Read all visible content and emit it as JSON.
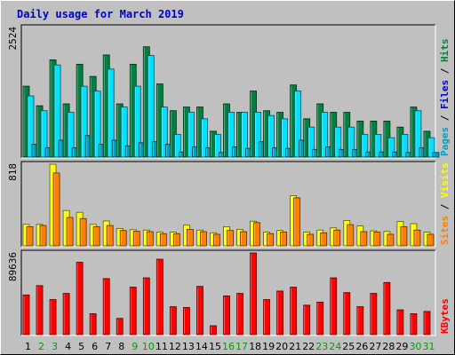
{
  "chart_data": {
    "type": "bar",
    "title": "Daily usage for March 2019",
    "colors": {
      "frame_bg": "#c0c0c0",
      "plot_bg": "#c0c0c0",
      "grid": "#a8a8a8",
      "title": "#0000cc",
      "hits": "#008040",
      "files": "#00e0ff",
      "pages": "#00a0c0",
      "visits": "#ffff00",
      "sites": "#ff8000",
      "kbytes": "#ff0000",
      "weekday": "#000000",
      "weekend": "#00a000"
    },
    "days": [
      "1",
      "2",
      "3",
      "4",
      "5",
      "6",
      "7",
      "8",
      "9",
      "10",
      "11",
      "12",
      "13",
      "14",
      "15",
      "16",
      "17",
      "18",
      "19",
      "20",
      "21",
      "22",
      "23",
      "24",
      "25",
      "26",
      "27",
      "28",
      "29",
      "30",
      "31"
    ],
    "weekend_days": [
      "2",
      "3",
      "9",
      "10",
      "16",
      "17",
      "23",
      "24",
      "30",
      "31"
    ],
    "panels": [
      {
        "id": "hits-files-pages",
        "max_label": "2524",
        "ymax": 2524,
        "labels": [
          {
            "text": "Pages",
            "color": "#00a0c0"
          },
          {
            "text": "Files",
            "color": "#0000cc"
          },
          {
            "text": "Hits",
            "color": "#008040"
          }
        ],
        "series": [
          {
            "name": "Hits",
            "color": "#008040",
            "values": [
              1381,
              1000,
              1894,
              1037,
              1809,
              1571,
              1989,
              1037,
              1809,
              2149,
              1425,
              904,
              975,
              975,
              503,
              1037,
              873,
              1287,
              904,
              873,
              1405,
              746,
              1037,
              873,
              873,
              701,
              701,
              701,
              584,
              975,
              503
            ]
          },
          {
            "name": "Files",
            "color": "#00e0ff",
            "values": [
              1193,
              904,
              1795,
              873,
              1381,
              1287,
              1714,
              975,
              1381,
              1978,
              975,
              441,
              873,
              746,
              441,
              873,
              873,
              873,
              810,
              746,
              1287,
              584,
              873,
              584,
              584,
              441,
              441,
              378,
              441,
              904,
              378
            ]
          },
          {
            "name": "Pages",
            "color": "#00a0c0",
            "values": [
              250,
              180,
              330,
              180,
              420,
              250,
              330,
              220,
              280,
              300,
              250,
              100,
              200,
              180,
              90,
              200,
              170,
              300,
              180,
              170,
              330,
              150,
              200,
              150,
              150,
              100,
              100,
              100,
              90,
              180,
              90
            ]
          }
        ]
      },
      {
        "id": "visits-sites",
        "max_label": "818",
        "ymax": 818,
        "labels": [
          {
            "text": "Sites",
            "color": "#ff8000"
          },
          {
            "text": "Visits",
            "color": "#ffff00"
          }
        ],
        "series": [
          {
            "name": "Visits",
            "color": "#ffff00",
            "values": [
              215,
              215,
              818,
              354,
              336,
              215,
              249,
              174,
              162,
              158,
              138,
              138,
              207,
              158,
              131,
              192,
              165,
              247,
              138,
              154,
              502,
              138,
              158,
              180,
              254,
              200,
              150,
              144,
              244,
              222,
              138
            ]
          },
          {
            "name": "Sites",
            "color": "#ff8000",
            "values": [
              192,
              204,
              730,
              284,
              273,
              192,
              204,
              154,
              146,
              142,
              122,
              122,
              165,
              142,
              116,
              154,
              142,
              233,
              122,
              138,
              481,
              116,
              131,
              158,
              212,
              142,
              138,
              116,
              192,
              158,
              116
            ]
          }
        ]
      },
      {
        "id": "kbytes",
        "max_label": "89636",
        "ymax": 89636,
        "labels": [
          {
            "text": "KBytes",
            "color": "#ff0000"
          }
        ],
        "series": [
          {
            "name": "KBytes",
            "color": "#ff0000",
            "values": [
              43540,
              53780,
              38420,
              45240,
              79380,
              22920,
              61460,
              17800,
              52080,
              62300,
              82780,
              30640,
              29780,
              52930,
              9760,
              42520,
              45240,
              89636,
              38420,
              47790,
              52080,
              32300,
              35600,
              62300,
              46080,
              30640,
              45240,
              57180,
              27200,
              22920,
              25440
            ]
          }
        ]
      }
    ]
  }
}
